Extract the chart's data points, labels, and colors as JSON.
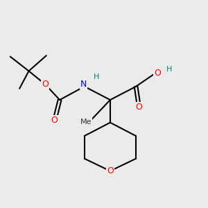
{
  "bg_color": "#ebebeb",
  "bond_color": "#000000",
  "atom_colors": {
    "O": "#ff0000",
    "N": "#0000cd",
    "H": "#008080",
    "C": "#000000"
  },
  "font_size": 9
}
